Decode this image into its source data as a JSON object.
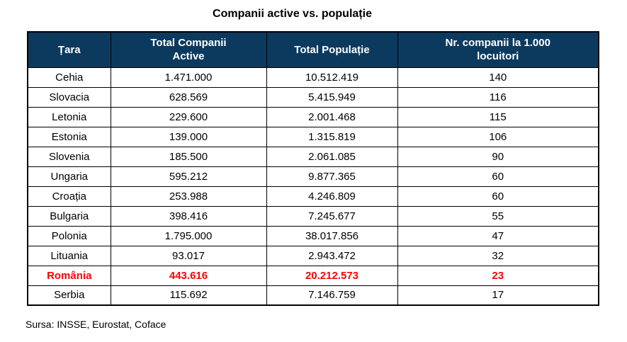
{
  "title": "Companii active vs. populație",
  "source": "Sursa: INSSE, Eurostat, Coface",
  "colors": {
    "header_bg": "#0C3A5E",
    "header_text": "#FFFFFF",
    "highlight_text": "#FF0000",
    "border": "#000000",
    "background": "#FFFFFF"
  },
  "table": {
    "columns": [
      "Țara",
      "Total Companii\nActive",
      "Total Populație",
      "Nr. companii la 1.000\nlocuitori"
    ],
    "rows": [
      {
        "country": "Cehia",
        "companies": "1.471.000",
        "population": "10.512.419",
        "per_1000": "140",
        "highlight": false
      },
      {
        "country": "Slovacia",
        "companies": "628.569",
        "population": "5.415.949",
        "per_1000": "116",
        "highlight": false
      },
      {
        "country": "Letonia",
        "companies": "229.600",
        "population": "2.001.468",
        "per_1000": "115",
        "highlight": false
      },
      {
        "country": "Estonia",
        "companies": "139.000",
        "population": "1.315.819",
        "per_1000": "106",
        "highlight": false
      },
      {
        "country": "Slovenia",
        "companies": "185.500",
        "population": "2.061.085",
        "per_1000": "90",
        "highlight": false
      },
      {
        "country": "Ungaria",
        "companies": "595.212",
        "population": "9.877.365",
        "per_1000": "60",
        "highlight": false
      },
      {
        "country": "Croația",
        "companies": "253.988",
        "population": "4.246.809",
        "per_1000": "60",
        "highlight": false
      },
      {
        "country": "Bulgaria",
        "companies": "398.416",
        "population": "7.245.677",
        "per_1000": "55",
        "highlight": false
      },
      {
        "country": "Polonia",
        "companies": "1.795.000",
        "population": "38.017.856",
        "per_1000": "47",
        "highlight": false
      },
      {
        "country": "Lituania",
        "companies": "93.017",
        "population": "2.943.472",
        "per_1000": "32",
        "highlight": false
      },
      {
        "country": "România",
        "companies": "443.616",
        "population": "20.212.573",
        "per_1000": "23",
        "highlight": true
      },
      {
        "country": "Serbia",
        "companies": "115.692",
        "population": "7.146.759",
        "per_1000": "17",
        "highlight": false
      }
    ]
  },
  "chart_data": {
    "type": "table",
    "title": "Companii active vs. populație",
    "columns": [
      "Țara",
      "Total Companii Active",
      "Total Populație",
      "Nr. companii la 1.000 locuitori"
    ],
    "rows": [
      [
        "Cehia",
        1471000,
        10512419,
        140
      ],
      [
        "Slovacia",
        628569,
        5415949,
        116
      ],
      [
        "Letonia",
        229600,
        2001468,
        115
      ],
      [
        "Estonia",
        139000,
        1315819,
        106
      ],
      [
        "Slovenia",
        185500,
        2061085,
        90
      ],
      [
        "Ungaria",
        595212,
        9877365,
        60
      ],
      [
        "Croația",
        253988,
        4246809,
        60
      ],
      [
        "Bulgaria",
        398416,
        7245677,
        55
      ],
      [
        "Polonia",
        1795000,
        38017856,
        47
      ],
      [
        "Lituania",
        93017,
        2943472,
        32
      ],
      [
        "România",
        443616,
        20212573,
        23
      ],
      [
        "Serbia",
        115692,
        7146759,
        17
      ]
    ],
    "highlighted_row": "România",
    "source": "Sursa: INSSE, Eurostat, Coface"
  }
}
